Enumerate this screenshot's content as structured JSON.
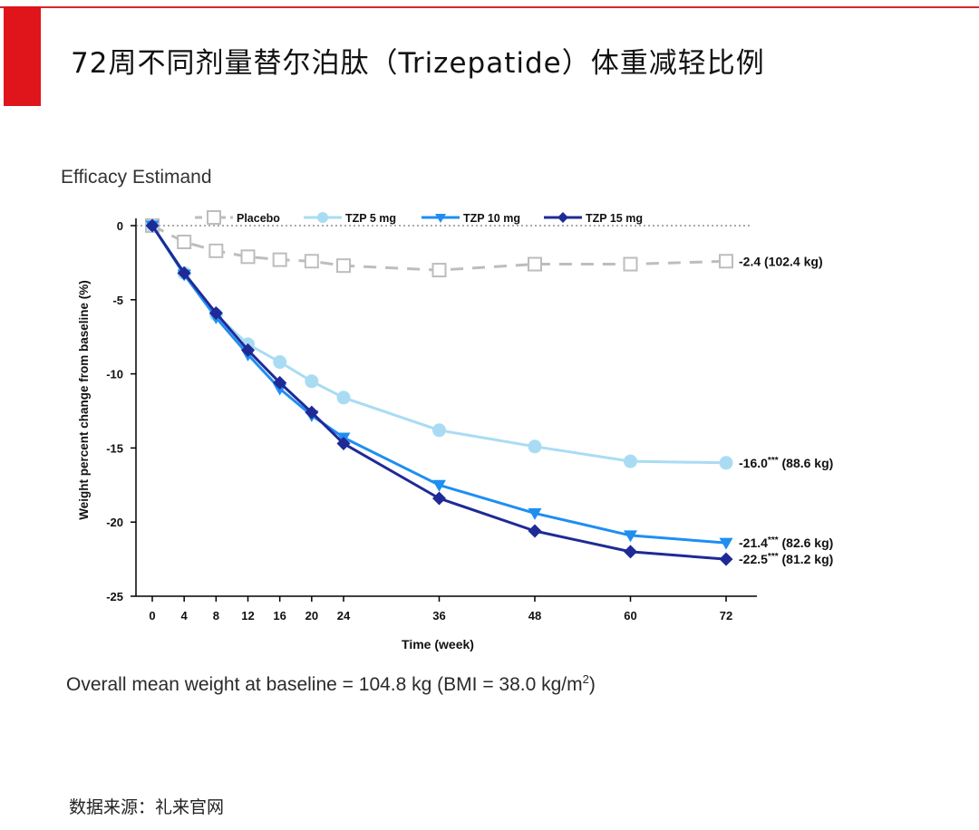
{
  "header": {
    "title": "72周不同剂量替尔泊肽（Trizepatide）体重减轻比例",
    "accent_color": "#e0141b"
  },
  "subtitle": "Efficacy Estimand",
  "footnote": {
    "text": "Overall mean weight at baseline = 104.8 kg (BMI = 38.0 kg/m",
    "sup": "2",
    "close": ")"
  },
  "source": "数据来源：礼来官网",
  "chart_data": {
    "type": "line",
    "xlabel": "Time (week)",
    "ylabel": "Weight percent change from baseline (%)",
    "ylim": [
      -25,
      0
    ],
    "yticks": [
      0,
      -5,
      -10,
      -15,
      -20,
      -25
    ],
    "x": [
      0,
      4,
      8,
      12,
      16,
      20,
      24,
      36,
      48,
      60,
      72
    ],
    "legend_position": "top",
    "series": [
      {
        "name": "Placebo",
        "color": "#bdbdbd",
        "marker": "square-open",
        "dashed": true,
        "values": [
          0,
          -1.1,
          -1.7,
          -2.1,
          -2.3,
          -2.4,
          -2.7,
          -3.0,
          -2.6,
          -2.6,
          -2.4
        ],
        "end_label": "-2.4 (102.4 kg)"
      },
      {
        "name": "TZP 5 mg",
        "color": "#a9dcf3",
        "marker": "circle",
        "dashed": false,
        "values": [
          0,
          -3.2,
          -6.0,
          -8.0,
          -9.2,
          -10.5,
          -11.6,
          -13.8,
          -14.9,
          -15.9,
          -16.0
        ],
        "end_label": "-16.0*** (88.6 kg)"
      },
      {
        "name": "TZP 10 mg",
        "color": "#1f8ef1",
        "marker": "triangle-down",
        "dashed": false,
        "values": [
          0,
          -3.3,
          -6.2,
          -8.7,
          -11.0,
          -12.8,
          -14.3,
          -17.5,
          -19.4,
          -20.9,
          -21.4
        ],
        "end_label": "-21.4*** (82.6 kg)"
      },
      {
        "name": "TZP 15 mg",
        "color": "#1f2a96",
        "marker": "diamond",
        "dashed": false,
        "values": [
          0,
          -3.2,
          -5.9,
          -8.4,
          -10.6,
          -12.6,
          -14.7,
          -18.4,
          -20.6,
          -22.0,
          -22.5
        ],
        "end_label": "-22.5*** (81.2 kg)"
      }
    ]
  }
}
